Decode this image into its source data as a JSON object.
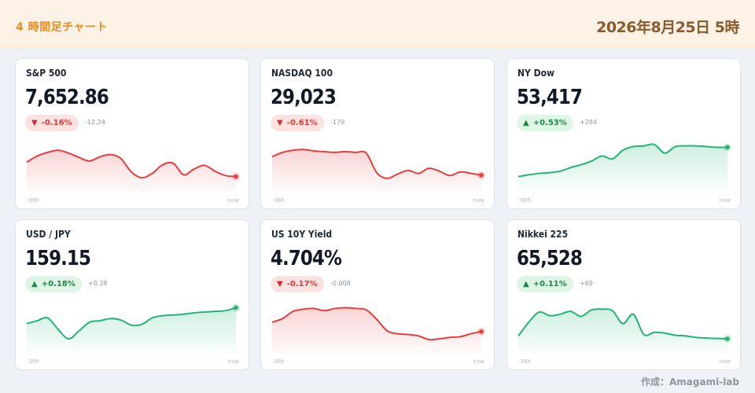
{
  "header": {
    "title": "4 時間足チャート",
    "date": "2026年8月25日 5時"
  },
  "credit": "作成：Amagami-lab",
  "time_axis": {
    "start": "-36h",
    "end": "now"
  },
  "colors": {
    "up": "#22b573",
    "down": "#e53e3e"
  },
  "cards": [
    {
      "name": "S&P 500",
      "value": "7,652.86",
      "direction": "down",
      "change_pct": "-0.16%",
      "change_abs": "-12.24",
      "series": [
        0.45,
        0.62,
        0.72,
        0.78,
        0.7,
        0.58,
        0.48,
        0.6,
        0.66,
        0.55,
        0.18,
        0.02,
        0.14,
        0.38,
        0.42,
        0.1,
        0.26,
        0.36,
        0.2,
        0.08,
        0.05
      ]
    },
    {
      "name": "NASDAQ 100",
      "value": "29,023",
      "direction": "down",
      "change_pct": "-0.61%",
      "change_abs": "-179",
      "series": [
        0.6,
        0.72,
        0.78,
        0.8,
        0.76,
        0.74,
        0.72,
        0.74,
        0.72,
        0.7,
        0.16,
        0.0,
        0.12,
        0.22,
        0.14,
        0.28,
        0.2,
        0.08,
        0.18,
        0.14,
        0.09
      ]
    },
    {
      "name": "NY Dow",
      "value": "53,417",
      "direction": "up",
      "change_pct": "+0.53%",
      "change_abs": "+284",
      "series": [
        0.05,
        0.1,
        0.14,
        0.16,
        0.2,
        0.3,
        0.38,
        0.48,
        0.62,
        0.54,
        0.78,
        0.88,
        0.9,
        0.94,
        0.7,
        0.88,
        0.9,
        0.9,
        0.88,
        0.86,
        0.86
      ]
    },
    {
      "name": "USD / JPY",
      "value": "159.15",
      "direction": "up",
      "change_pct": "+0.18%",
      "change_abs": "+0.28",
      "series": [
        0.44,
        0.52,
        0.6,
        0.28,
        0.02,
        0.24,
        0.48,
        0.52,
        0.58,
        0.54,
        0.4,
        0.42,
        0.6,
        0.66,
        0.68,
        0.7,
        0.74,
        0.76,
        0.78,
        0.8,
        0.88
      ]
    },
    {
      "name": "US 10Y Yield",
      "value": "4.704%",
      "direction": "down",
      "change_pct": "-0.17%",
      "change_abs": "-0.008",
      "series": [
        0.48,
        0.58,
        0.78,
        0.84,
        0.86,
        0.8,
        0.86,
        0.88,
        0.86,
        0.82,
        0.56,
        0.24,
        0.16,
        0.14,
        0.1,
        0.0,
        0.02,
        0.06,
        0.08,
        0.16,
        0.22
      ]
    },
    {
      "name": "Nikkei 225",
      "value": "65,528",
      "direction": "up",
      "change_pct": "+0.11%",
      "change_abs": "+69",
      "series": [
        0.1,
        0.48,
        0.76,
        0.66,
        0.7,
        0.78,
        0.64,
        0.82,
        0.84,
        0.8,
        0.44,
        0.7,
        0.14,
        0.2,
        0.18,
        0.12,
        0.1,
        0.06,
        0.04,
        0.03,
        0.02
      ]
    }
  ]
}
